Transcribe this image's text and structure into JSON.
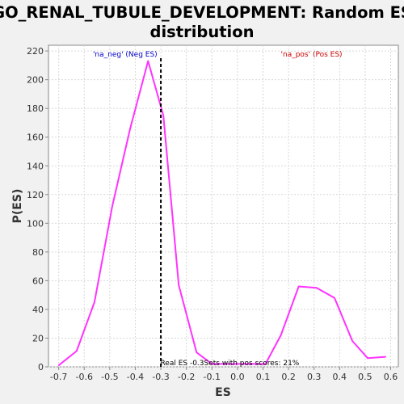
{
  "chart_data": {
    "type": "line",
    "title_line1": "GO_RENAL_TUBULE_DEVELOPMENT: Random ES",
    "title_line2": "distribution",
    "xlabel": "ES",
    "ylabel": "P(ES)",
    "xlim": [
      -0.74,
      0.63
    ],
    "ylim": [
      0,
      224
    ],
    "x_ticks": [
      -0.7,
      -0.6,
      -0.5,
      -0.4,
      -0.3,
      -0.2,
      -0.1,
      0.0,
      0.1,
      0.2,
      0.3,
      0.4,
      0.5,
      0.6
    ],
    "x_tick_labels": [
      "-0.7",
      "-0.6",
      "-0.5",
      "-0.4",
      "-0.3",
      "-0.2",
      "-0.1",
      "0.0",
      "0.1",
      "0.2",
      "0.3",
      "0.4",
      "0.5",
      "0.6"
    ],
    "y_ticks": [
      0,
      20,
      40,
      60,
      80,
      100,
      120,
      140,
      160,
      180,
      200,
      220
    ],
    "y_tick_labels": [
      "0",
      "20",
      "40",
      "60",
      "80",
      "100",
      "120",
      "140",
      "160",
      "180",
      "200",
      "220"
    ],
    "grid": true,
    "line_color": "#ff33ff",
    "series": [
      {
        "x": [
          -0.7,
          -0.63,
          -0.56,
          -0.49,
          -0.42,
          -0.35,
          -0.29,
          -0.23,
          -0.16,
          -0.1,
          -0.03,
          0.04,
          0.11,
          0.17,
          0.24,
          0.31,
          0.38,
          0.45,
          0.51,
          0.58
        ],
        "values": [
          1,
          11,
          45,
          112,
          166,
          213,
          175,
          57,
          10,
          2,
          2,
          2,
          2,
          22,
          56,
          55,
          48,
          18,
          6,
          7
        ]
      }
    ],
    "real_es": -0.3,
    "annotations": {
      "neg": {
        "text": "'na_neg' (Neg ES)",
        "color": "#0000cc"
      },
      "pos": {
        "text": "'na_pos' (Pos ES)",
        "color": "#cc0000"
      },
      "bottom": {
        "text": "Real ES -0.3Sets with pos scores: 21%",
        "color": "#000000"
      }
    }
  }
}
